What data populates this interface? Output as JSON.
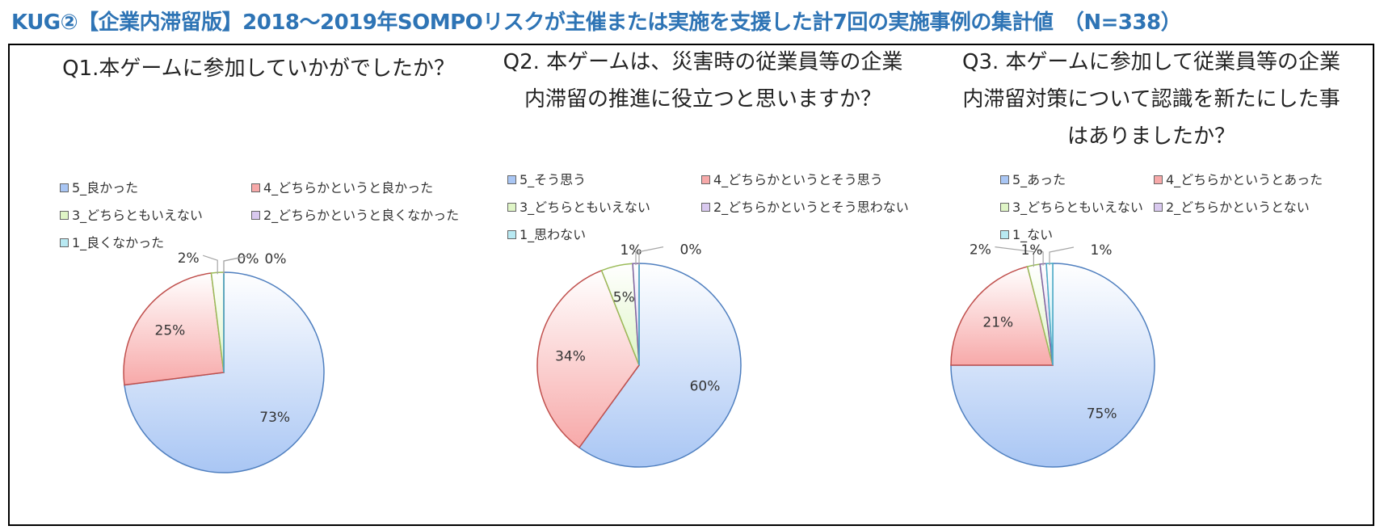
{
  "page_title": "KUG②【企業内滞留版】2018～2019年SOMPOリスクが主催または実施を支援した計7回の実施事例の集計値　（N=338）",
  "colors": {
    "title": "#2e74b5",
    "slice_5": "#a9c6f4",
    "slice_4": "#f7a9a9",
    "slice_3": "#dff5c6",
    "slice_2": "#d9c9ef",
    "slice_1": "#b8e9f2"
  },
  "chart_data": [
    {
      "type": "pie",
      "title": "Q1.本ゲームに参加していかがでしたか？",
      "categories": [
        "5_良かった",
        "4_どちらかというと良かった",
        "3_どちらともいえない",
        "2_どちらかというと良くなかった",
        "1_良くなかった"
      ],
      "values": [
        73,
        25,
        2,
        0,
        0
      ],
      "data_labels": [
        "73%",
        "25%",
        "2%",
        "0%",
        "0%"
      ],
      "legend_position": "top"
    },
    {
      "type": "pie",
      "title": "Q2. 本ゲームは、災害時の従業員等の企業内滞留の推進に役立つと思いますか？",
      "categories": [
        "5_そう思う",
        "4_どちらかというとそう思う",
        "3_どちらともいえない",
        "2_どちらかというとそう思わない",
        "1_思わない"
      ],
      "values": [
        60,
        34,
        5,
        1,
        0
      ],
      "data_labels": [
        "60%",
        "34%",
        "5%",
        "1%",
        "0%"
      ],
      "legend_position": "top"
    },
    {
      "type": "pie",
      "title": "Q3. 本ゲームに参加して従業員等の企業内滞留対策について認識を新たにした事はありましたか？",
      "categories": [
        "5_あった",
        "4_どちらかというとあった",
        "3_どちらともいえない",
        "2_どちらかというとない",
        "1_ない"
      ],
      "values": [
        75,
        21,
        2,
        1,
        1
      ],
      "data_labels": [
        "75%",
        "21%",
        "2%",
        "1%",
        "1%"
      ],
      "legend_position": "top"
    }
  ]
}
